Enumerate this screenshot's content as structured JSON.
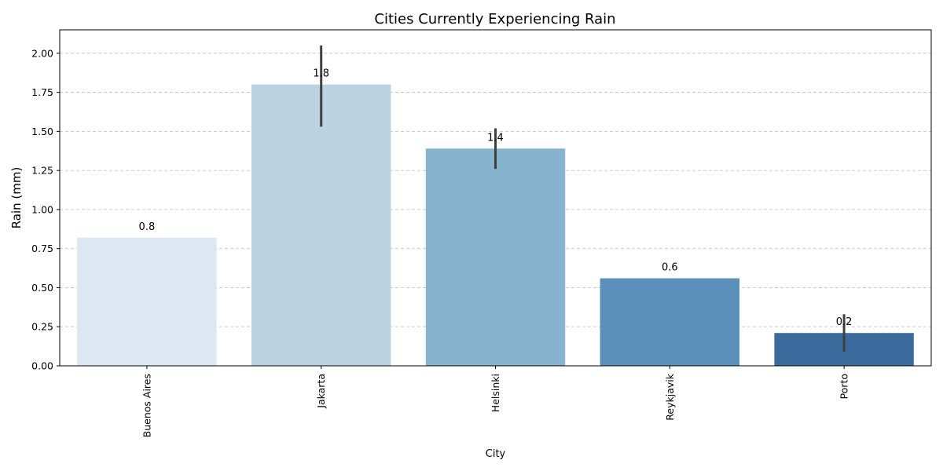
{
  "chart_data": {
    "type": "bar",
    "title": "Cities Currently Experiencing Rain",
    "xlabel": "City",
    "ylabel": "Rain (mm)",
    "categories": [
      "Buenos Aires",
      "Jakarta",
      "Helsinki",
      "Reykjavik",
      "Porto"
    ],
    "values": [
      0.82,
      1.8,
      1.39,
      0.56,
      0.21
    ],
    "value_labels": [
      "0.8",
      "1.8",
      "1.4",
      "0.6",
      "0.2"
    ],
    "error_low": [
      null,
      1.53,
      1.26,
      null,
      0.09
    ],
    "error_high": [
      null,
      2.05,
      1.52,
      null,
      0.33
    ],
    "colors": [
      "#dde7f1",
      "#bad2e2",
      "#86b3cd",
      "#5a90b9",
      "#3a6b9c"
    ],
    "ylim": [
      0,
      2.15
    ],
    "yticks": [
      0.0,
      0.25,
      0.5,
      0.75,
      1.0,
      1.25,
      1.5,
      1.75,
      2.0
    ],
    "ytick_labels": [
      "0.00",
      "0.25",
      "0.50",
      "0.75",
      "1.00",
      "1.25",
      "1.50",
      "1.75",
      "2.00"
    ],
    "grid": "y-dashed",
    "legend": "none",
    "xtick_rotation": 90
  }
}
